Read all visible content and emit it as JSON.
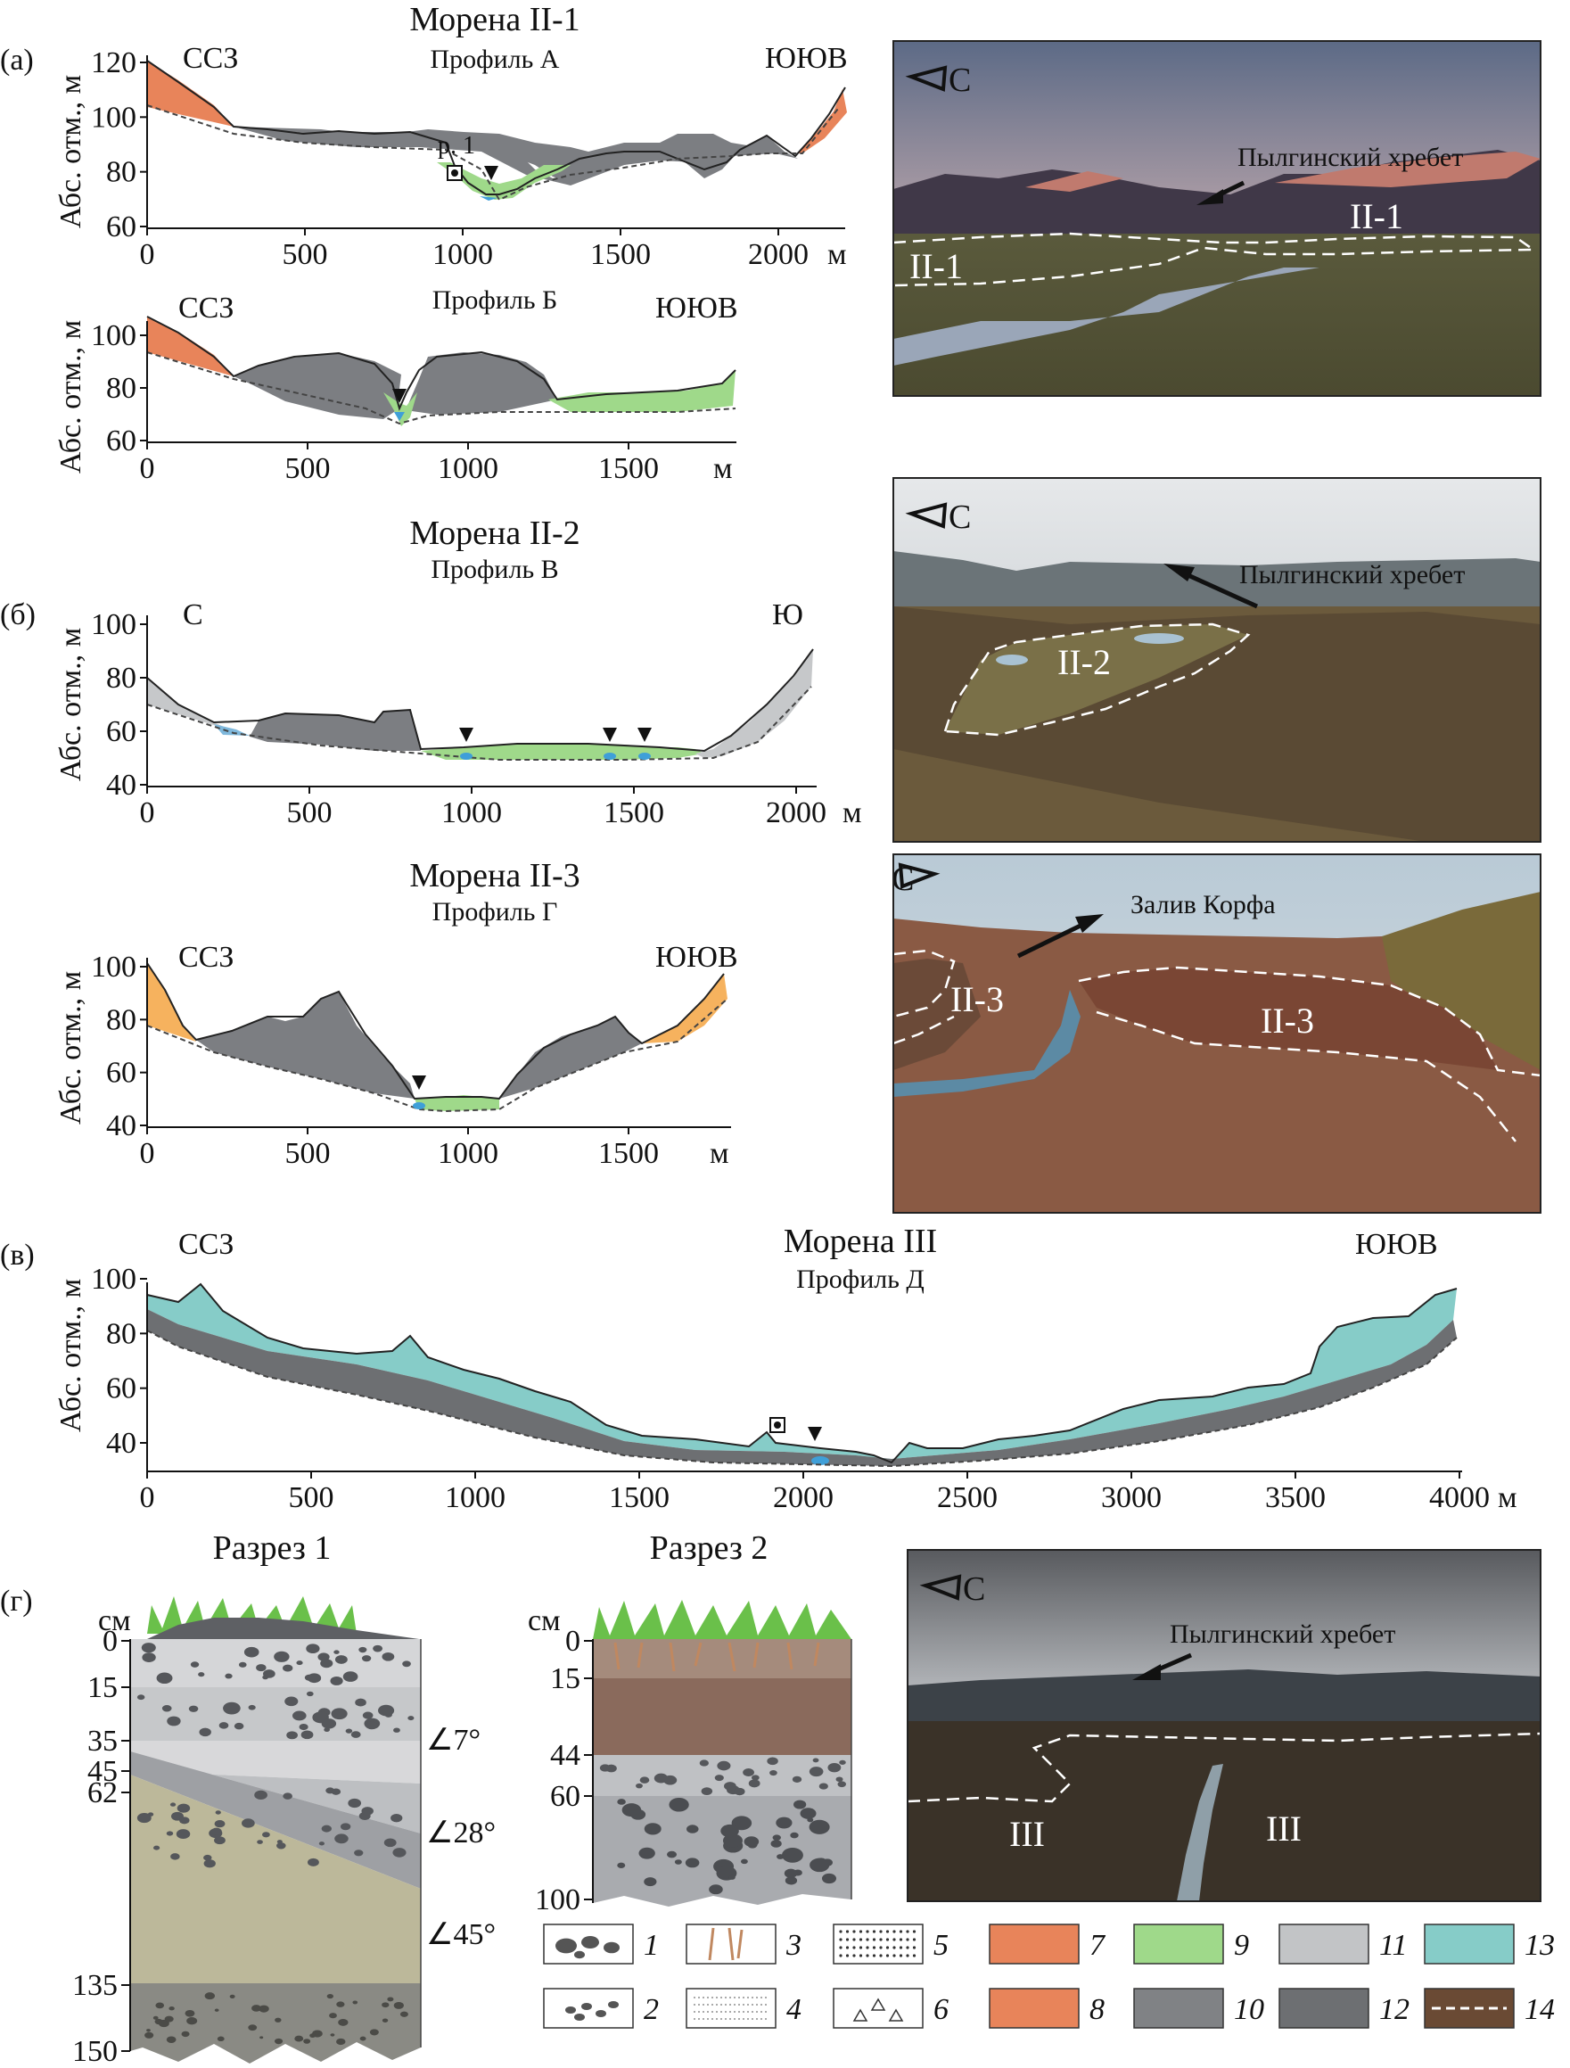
{
  "panels": {
    "a": {
      "label": "(а)",
      "moraine_title": "Морена II-1",
      "profile_A": {
        "name": "Профиль А",
        "left_dir": "ССЗ",
        "right_dir": "ЮЮВ",
        "ylabel": "Абс. отм., м",
        "y_ticks": [
          "120",
          "100",
          "80",
          "60"
        ],
        "x_ticks": [
          "0",
          "500",
          "1000",
          "1500",
          "2000"
        ],
        "x_unit": "м",
        "section_marker": "р. 1"
      },
      "profile_B": {
        "name": "Профиль Б",
        "left_dir": "ССЗ",
        "right_dir": "ЮЮВ",
        "ylabel": "Абс. отм., м",
        "y_ticks": [
          "100",
          "80",
          "60"
        ],
        "x_ticks": [
          "0",
          "500",
          "1000",
          "1500"
        ],
        "x_unit": "м"
      },
      "photo": {
        "north": "С",
        "ridge": "Пылгинский хребет",
        "labels": [
          "II-1",
          "II-1"
        ]
      }
    },
    "b": {
      "label": "(б)",
      "moraine_title": "Морена II-2",
      "profile_V": {
        "name": "Профиль В",
        "left_dir": "С",
        "right_dir": "Ю",
        "ylabel": "Абс. отм., м",
        "y_ticks": [
          "100",
          "80",
          "60",
          "40"
        ],
        "x_ticks": [
          "0",
          "500",
          "1000",
          "1500",
          "2000"
        ],
        "x_unit": "м"
      },
      "photo": {
        "north": "С",
        "ridge": "Пылгинский хребет",
        "labels": [
          "II-2"
        ]
      },
      "moraine_title_2": "Морена II-3",
      "profile_G": {
        "name": "Профиль Г",
        "left_dir": "ССЗ",
        "right_dir": "ЮЮВ",
        "ylabel": "Абс. отм., м",
        "y_ticks": [
          "100",
          "80",
          "60",
          "40"
        ],
        "x_ticks": [
          "0",
          "500",
          "1000",
          "1500"
        ],
        "x_unit": "м"
      },
      "photo2": {
        "north": "С",
        "bay": "Залив Корфа",
        "labels": [
          "II-3",
          "II-3"
        ]
      }
    },
    "v": {
      "label": "(в)",
      "moraine_title": "Морена III",
      "profile_D": {
        "name": "Профиль Д",
        "left_dir": "ССЗ",
        "right_dir": "ЮЮВ",
        "ylabel": "Абс. отм., м",
        "y_ticks": [
          "100",
          "80",
          "60",
          "40"
        ],
        "x_ticks": [
          "0",
          "500",
          "1000",
          "1500",
          "2000",
          "2500",
          "3000",
          "3500",
          "4000"
        ],
        "x_unit": "м"
      }
    },
    "g": {
      "label": "(г)",
      "section1": {
        "title": "Разрез 1",
        "unit": "см",
        "depths": [
          "0",
          "15",
          "35",
          "45",
          "62",
          "135",
          "150"
        ],
        "angles": [
          "∠7°",
          "∠28°",
          "∠45°"
        ]
      },
      "section2": {
        "title": "Разрез 2",
        "unit": "см",
        "depths": [
          "0",
          "15",
          "44",
          "60",
          "100"
        ]
      },
      "photo": {
        "north": "С",
        "ridge": "Пылгинский хребет",
        "labels": [
          "III",
          "III"
        ]
      }
    }
  },
  "legend": {
    "items": [
      {
        "num": "1"
      },
      {
        "num": "2"
      },
      {
        "num": "3"
      },
      {
        "num": "4"
      },
      {
        "num": "5"
      },
      {
        "num": "6"
      },
      {
        "num": "7",
        "color": "#e8845a"
      },
      {
        "num": "8",
        "color": "#e8845a"
      },
      {
        "num": "9",
        "color": "#9fd98a"
      },
      {
        "num": "10",
        "color": "#808285"
      },
      {
        "num": "11",
        "color": "#c2c4c6"
      },
      {
        "num": "12",
        "color": "#6d6f72"
      },
      {
        "num": "13",
        "color": "#86ccc8"
      },
      {
        "num": "14"
      }
    ]
  },
  "colors": {
    "orange": "#e8845a",
    "light_orange": "#f6b25e",
    "green": "#9fd98a",
    "grey": "#7c7e82",
    "light_grey": "#c6c8ca",
    "dark_grey": "#6d6f72",
    "teal": "#86ccc8",
    "blue": "#3f9fd8"
  }
}
